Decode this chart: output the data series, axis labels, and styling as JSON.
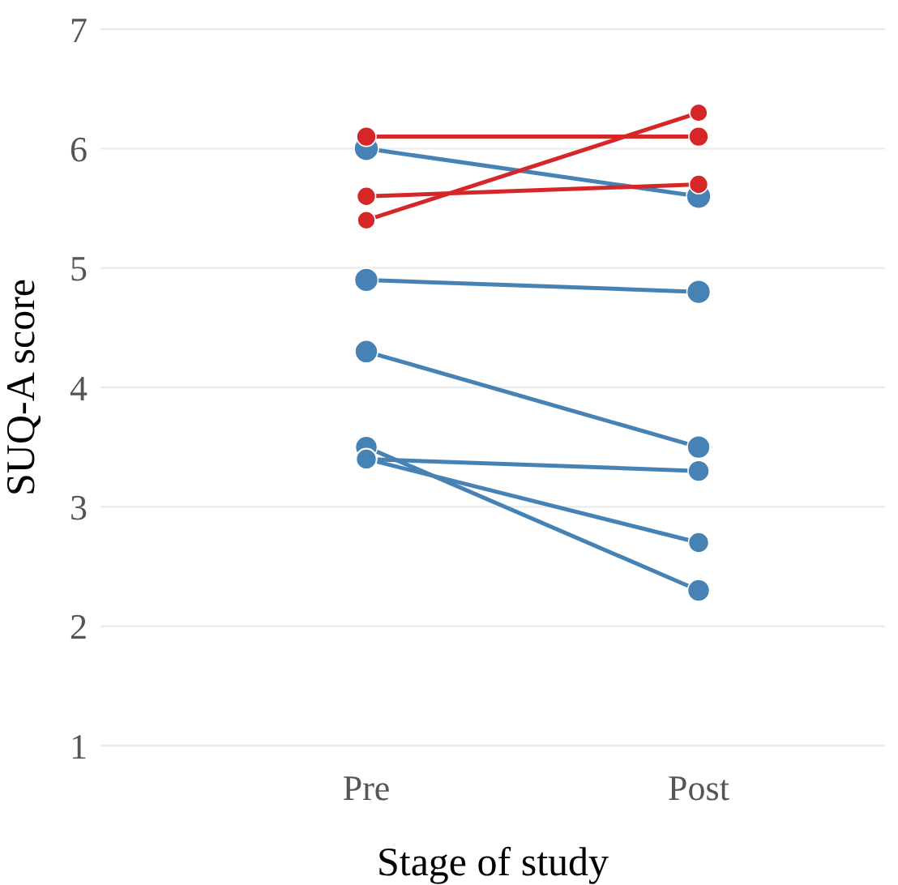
{
  "chart_data": {
    "type": "line",
    "xlabel": "Stage of study",
    "ylabel": "SUQ-A score",
    "categories": [
      "Pre",
      "Post"
    ],
    "ylim": [
      1,
      7
    ],
    "yticks": [
      1,
      2,
      3,
      4,
      5,
      6,
      7
    ],
    "grid": "y",
    "legend": false,
    "marker": "circle",
    "line_style": "solid",
    "series": [
      {
        "color": "#4682b4",
        "values": [
          6.0,
          5.6
        ]
      },
      {
        "color": "#4682b4",
        "values": [
          4.9,
          4.8
        ]
      },
      {
        "color": "#4682b4",
        "values": [
          4.3,
          3.5
        ]
      },
      {
        "color": "#4682b4",
        "values": [
          3.5,
          2.3
        ]
      },
      {
        "color": "#4682b4",
        "values": [
          3.4,
          3.3
        ]
      },
      {
        "color": "#4682b4",
        "values": [
          3.4,
          2.7
        ]
      },
      {
        "color": "#d62728",
        "values": [
          6.1,
          6.1
        ]
      },
      {
        "color": "#d62728",
        "values": [
          5.6,
          5.7
        ]
      },
      {
        "color": "#d62728",
        "values": [
          5.4,
          6.3
        ]
      }
    ]
  }
}
